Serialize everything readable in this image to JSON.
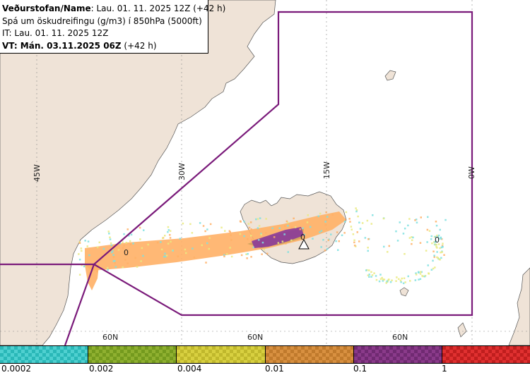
{
  "header": {
    "line1_bold": "Veðurstofan/Name",
    "line1_rest": ": Lau. 01. 11. 2025 12Z (+42 h)",
    "line2": "Spá um öskudreifingu (g/m3) í 850hPa (5000ft)",
    "line3": "IT: Lau. 01. 11. 2025 12Z",
    "line4_bold": "VT: Mán. 03.11.2025 06Z",
    "line4_rest": " (+42 h)"
  },
  "map": {
    "longitude_labels": [
      "45W",
      "30W",
      "15W",
      "0W"
    ],
    "latitude_labels": [
      "60N",
      "60N",
      "60N"
    ],
    "contour_labels": [
      "0",
      "0",
      "0"
    ],
    "colors": {
      "land": "#efe3d7",
      "sea": "#ffffff",
      "boundary": "#7a1a7a",
      "ash_low": "#ffb066",
      "ash_mid": "#c9a05a",
      "ash_high": "#8a3a9a",
      "speckle_cyan": "#7fe0e0",
      "speckle_yellow": "#eaea80"
    },
    "volcano_icon": "triangle-warning-icon"
  },
  "legend": {
    "swatches": [
      {
        "color": "#4fd0d0",
        "color2": "#2ab8b8"
      },
      {
        "color": "#8fb030",
        "color2": "#749a1e"
      },
      {
        "color": "#d8d040",
        "color2": "#c0b82c"
      },
      {
        "color": "#d89040",
        "color2": "#c07a2c"
      },
      {
        "color": "#8a3a8a",
        "color2": "#702a72"
      },
      {
        "color": "#e03030",
        "color2": "#c01e1e"
      }
    ],
    "labels": [
      "0.0002",
      "0.002",
      "0.004",
      "0.01",
      "0.1",
      "1"
    ]
  }
}
